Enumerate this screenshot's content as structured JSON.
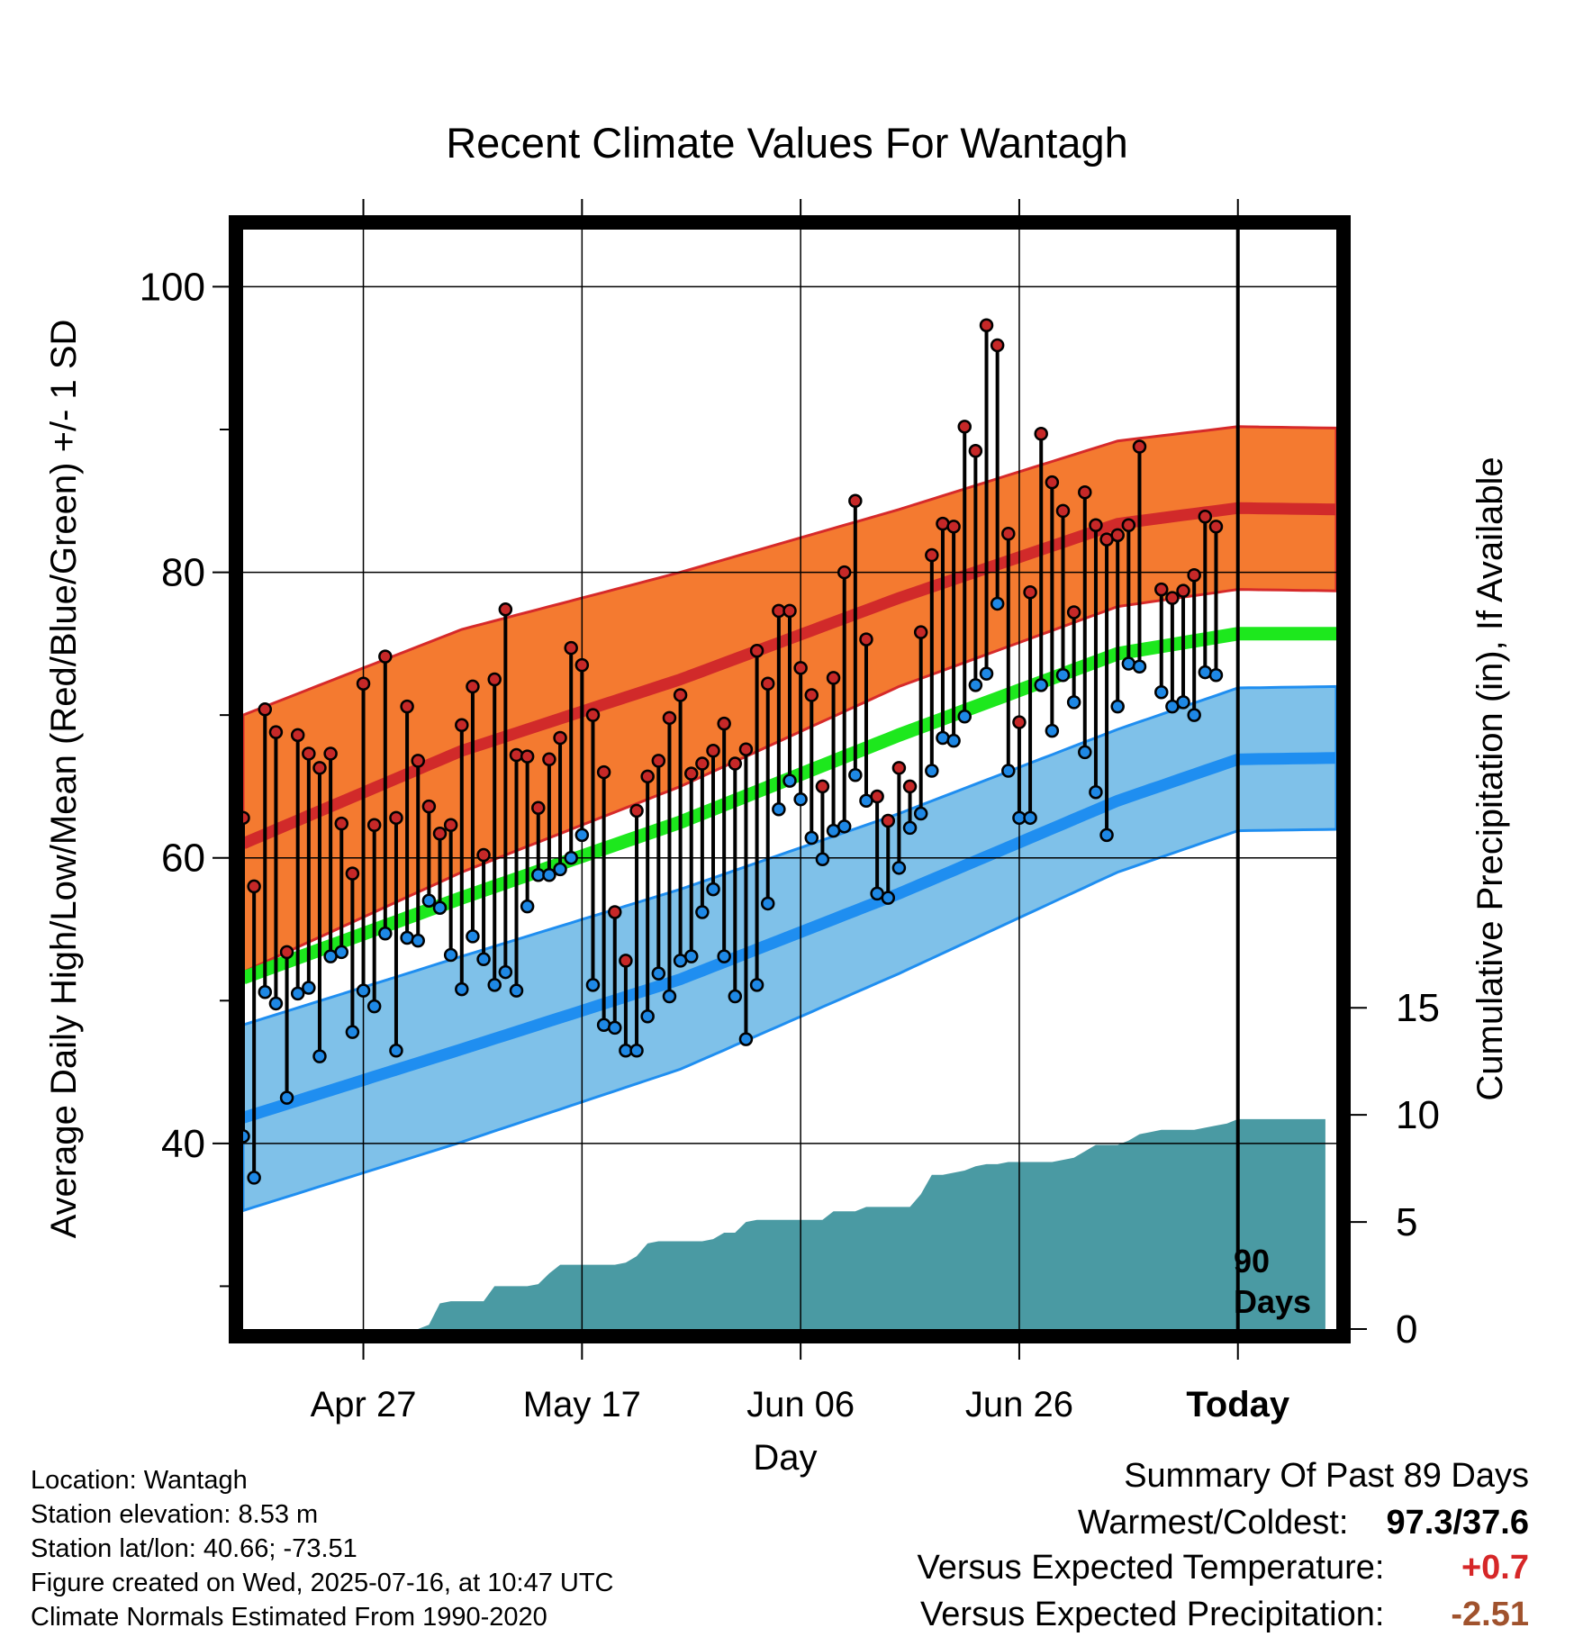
{
  "title": "Recent Climate Values For Wantagh",
  "chart_data": {
    "type": "line",
    "xlabel": "Day",
    "ylabel_left": "Average Daily High/Low/Mean (Red/Blue/Green) +/- 1 SD",
    "ylabel_right": "Cumulative Precipitation (in), If Available",
    "x_tick_labels": [
      "Apr 27",
      "May 17",
      "Jun 06",
      "Jun 26",
      "Today"
    ],
    "x_tick_days": [
      11,
      31,
      51,
      71,
      91
    ],
    "x_range_days": [
      0,
      100
    ],
    "today_day": 91,
    "today_annotation": "90\nDays",
    "ylim": [
      27,
      104
    ],
    "y_ticks_major": [
      40,
      60,
      80,
      100
    ],
    "y_ticks_minor": [
      30,
      50,
      70,
      90
    ],
    "precip_ticks": [
      0,
      5,
      10,
      15
    ],
    "precip_ylim_units_per_temp": 0.6667,
    "normals": {
      "days": [
        0,
        20,
        40,
        60,
        80,
        91,
        100
      ],
      "high_mean": [
        61,
        67.5,
        72.5,
        78.2,
        83.4,
        84.5,
        84.4
      ],
      "high_sd": [
        9,
        8.5,
        7.5,
        6.2,
        5.8,
        5.7,
        5.7
      ],
      "low_mean": [
        41.8,
        46.6,
        51.5,
        57.5,
        64,
        66.9,
        67.0
      ],
      "low_sd": [
        6.5,
        6.5,
        6.3,
        5.6,
        5.0,
        5.0,
        5.0
      ],
      "mean": [
        51.6,
        57.2,
        62.5,
        68.6,
        74.3,
        75.7,
        75.7
      ]
    },
    "series": [
      {
        "name": "High",
        "color": "#c62828",
        "values": [
          62.8,
          58,
          70.4,
          68.8,
          53.4,
          68.6,
          67.3,
          66.3,
          67.3,
          62.4,
          58.9,
          72.2,
          62.3,
          74.1,
          62.8,
          70.6,
          66.8,
          63.6,
          61.7,
          62.3,
          69.3,
          72,
          60.2,
          72.5,
          77.4,
          67.2,
          67.1,
          63.5,
          66.9,
          68.4,
          74.7,
          73.5,
          70,
          66,
          56.2,
          52.8,
          63.3,
          65.7,
          66.8,
          69.8,
          71.4,
          65.9,
          66.6,
          67.5,
          69.4,
          66.6,
          67.6,
          74.5,
          72.2,
          77.3,
          77.3,
          73.3,
          71.4,
          65,
          72.6,
          80,
          85,
          75.3,
          64.3,
          62.6,
          66.3,
          65,
          75.8,
          81.2,
          83.4,
          83.2,
          90.2,
          88.5,
          97.3,
          95.9,
          82.7,
          69.5,
          78.6,
          89.7,
          86.3,
          84.3,
          77.2,
          85.6,
          83.3,
          82.3,
          82.6,
          83.3,
          88.8,
          null,
          78.8,
          78.2,
          78.7,
          79.8,
          83.9,
          83.2
        ]
      },
      {
        "name": "Low",
        "color": "#1e88e5",
        "values": [
          40.5,
          37.6,
          50.6,
          49.8,
          43.2,
          50.5,
          50.9,
          46.1,
          53.1,
          53.4,
          47.8,
          50.7,
          49.6,
          54.7,
          46.5,
          54.4,
          54.2,
          57,
          56.5,
          53.2,
          50.8,
          54.5,
          52.9,
          51.1,
          52,
          50.7,
          56.6,
          58.8,
          58.8,
          59.2,
          60,
          61.6,
          51.1,
          48.3,
          48.1,
          46.5,
          46.5,
          48.9,
          51.9,
          50.3,
          52.8,
          53.1,
          56.2,
          57.8,
          53.1,
          50.3,
          47.3,
          51.1,
          56.8,
          63.4,
          65.4,
          64.1,
          61.4,
          59.9,
          61.9,
          62.2,
          65.8,
          64,
          57.5,
          57.2,
          59.3,
          62.1,
          63.1,
          66.1,
          68.4,
          68.2,
          69.9,
          72.1,
          72.9,
          77.8,
          66.1,
          62.8,
          62.8,
          72.1,
          68.9,
          72.8,
          70.9,
          67.4,
          64.6,
          61.6,
          70.6,
          73.6,
          73.4,
          null,
          71.6,
          70.6,
          70.9,
          70,
          73,
          72.8
        ]
      },
      {
        "name": "Precipitation",
        "color": "#4a9aa3",
        "values": [
          0,
          0,
          0,
          0,
          0,
          0,
          0,
          0,
          0,
          0,
          0,
          0,
          0,
          0,
          0,
          0,
          0,
          0.2,
          1.2,
          1.3,
          1.3,
          1.3,
          1.3,
          2,
          2,
          2,
          2,
          2.1,
          2.6,
          3,
          3,
          3,
          3,
          3,
          3,
          3.1,
          3.4,
          4,
          4.1,
          4.1,
          4.1,
          4.1,
          4.1,
          4.2,
          4.5,
          4.5,
          5,
          5.1,
          5.1,
          5.1,
          5.1,
          5.1,
          5.1,
          5.1,
          5.5,
          5.5,
          5.5,
          5.7,
          5.7,
          5.7,
          5.7,
          5.7,
          6.3,
          7.2,
          7.2,
          7.3,
          7.4,
          7.6,
          7.7,
          7.7,
          7.8,
          7.8,
          7.8,
          7.8,
          7.8,
          7.9,
          8,
          8.3,
          8.6,
          8.6,
          8.6,
          8.8,
          9.1,
          9.2,
          9.3,
          9.3,
          9.3,
          9.3,
          9.4,
          9.5,
          9.6,
          9.8,
          9.8,
          9.8,
          9.8,
          9.8,
          9.8,
          9.8,
          9.8,
          9.8
        ]
      }
    ]
  },
  "info": {
    "location": "Location: Wantagh",
    "elevation": "Station elevation: 8.53 m",
    "latlon": "Station lat/lon: 40.66; -73.51",
    "created": "Figure created on Wed, 2025-07-16, at 10:47 UTC",
    "normals": "Climate Normals Estimated From 1990-2020"
  },
  "summary": {
    "title": "Summary Of Past 89 Days",
    "warm_cold_label": "Warmest/Coldest:",
    "warm_cold_value": "97.3/37.6",
    "temp_label": "Versus Expected Temperature:",
    "temp_value": "+0.7",
    "precip_label": "Versus Expected Precipitation:",
    "precip_value": "-2.51"
  },
  "colors": {
    "high_band": "#f47a30",
    "high_line": "#d12a2a",
    "low_band": "#7fc1e9",
    "low_line": "#1f8ef0",
    "mean_line": "#1de81d",
    "precip_fill": "#4a9aa3"
  }
}
